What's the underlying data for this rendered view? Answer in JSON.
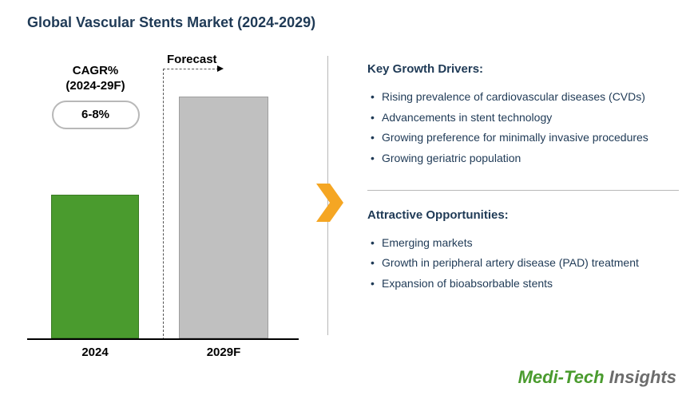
{
  "title": "Global Vascular Stents Market (2024-2029)",
  "chart": {
    "type": "bar",
    "background_color": "#ffffff",
    "axis_color": "#000000",
    "divider_dash_color": "#555555",
    "forecast_label": "Forecast",
    "cagr_label_line1": "CAGR%",
    "cagr_label_line2": "(2024-29F)",
    "cagr_value": "6-8%",
    "bars": [
      {
        "label": "2024",
        "height_pct": 53,
        "fill": "#4a9b2e",
        "border": "#3a7a24"
      },
      {
        "label": "2029F",
        "height_pct": 89,
        "fill": "#c0c0c0",
        "border": "#9e9e9e"
      }
    ]
  },
  "arrow_color": "#f5a623",
  "drivers": {
    "title": "Key Growth Drivers:",
    "items": [
      "Rising prevalence of cardiovascular diseases (CVDs)",
      "Advancements in stent technology",
      "Growing preference for minimally invasive procedures",
      "Growing geriatric population"
    ]
  },
  "opportunities": {
    "title": "Attractive Opportunities:",
    "items": [
      "Emerging markets",
      "Growth in peripheral artery disease (PAD) treatment",
      "Expansion of bioabsorbable stents"
    ]
  },
  "logo": {
    "part1": "Medi-Tech",
    "part2": " Insights"
  },
  "colors": {
    "heading": "#1f3a56",
    "text": "#1f3a56",
    "divider": "#b8b8b8"
  }
}
